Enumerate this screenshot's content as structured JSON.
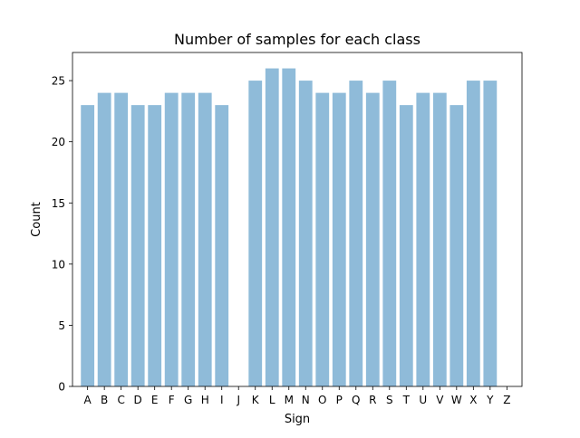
{
  "chart_data": {
    "type": "bar",
    "title": "Number of samples for each class",
    "xlabel": "Sign",
    "ylabel": "Count",
    "categories": [
      "A",
      "B",
      "C",
      "D",
      "E",
      "F",
      "G",
      "H",
      "I",
      "J",
      "K",
      "L",
      "M",
      "N",
      "O",
      "P",
      "Q",
      "R",
      "S",
      "T",
      "U",
      "V",
      "W",
      "X",
      "Y",
      "Z"
    ],
    "values": [
      23,
      24,
      24,
      23,
      23,
      24,
      24,
      24,
      23,
      0,
      25,
      26,
      26,
      25,
      24,
      24,
      25,
      24,
      25,
      23,
      24,
      24,
      23,
      25,
      25,
      0
    ],
    "ylim": [
      0,
      27.3
    ],
    "yticks": [
      0,
      5,
      10,
      15,
      20,
      25
    ],
    "bar_color": "#8fbbd9",
    "grid": false,
    "legend": "none"
  }
}
